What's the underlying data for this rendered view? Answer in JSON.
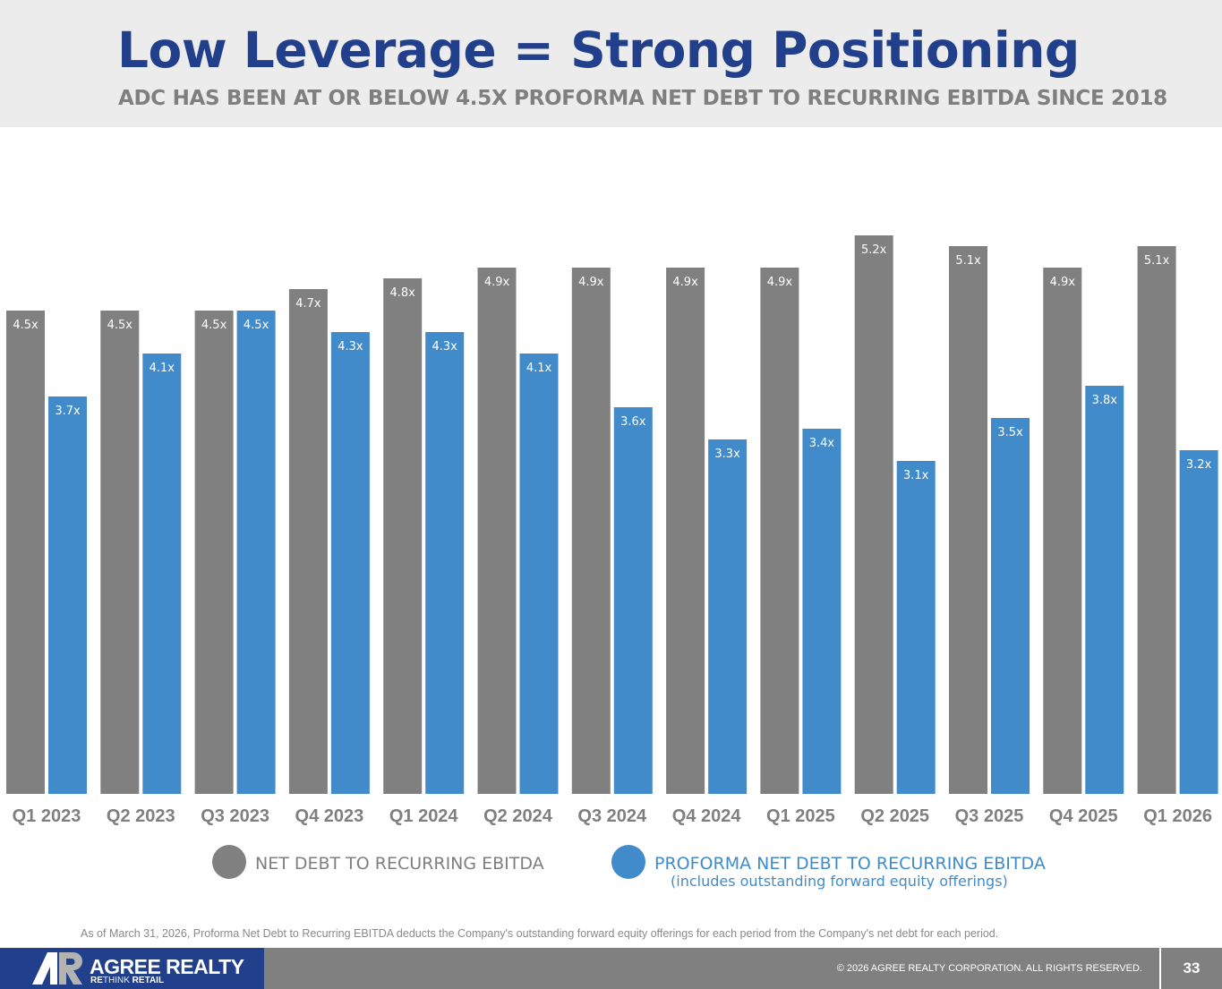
{
  "header": {
    "title": "Low Leverage = Strong Positioning",
    "subtitle": "ADC HAS BEEN AT OR BELOW 4.5X PROFORMA NET DEBT TO RECURRING EBITDA SINCE 2018"
  },
  "colors": {
    "net_debt": "#808080",
    "proforma": "#428bca",
    "title": "#213f8a",
    "subtitle": "#7f7f7f"
  },
  "chart_data": {
    "type": "bar",
    "title": "Low Leverage = Strong Positioning",
    "xlabel": "",
    "ylabel": "",
    "ylim": [
      0,
      5.2
    ],
    "grid": false,
    "legend_position": "bottom",
    "label_suffix": "x",
    "categories": [
      "Q1 2023",
      "Q2 2023",
      "Q3 2023",
      "Q4 2023",
      "Q1 2024",
      "Q2 2024",
      "Q3 2024",
      "Q4 2024",
      "Q1 2025",
      "Q2 2025",
      "Q3 2025",
      "Q4 2025",
      "Q1 2026"
    ],
    "series": [
      {
        "name": "NET DEBT TO RECURRING EBITDA",
        "color": "#808080",
        "values": [
          4.5,
          4.5,
          4.5,
          4.7,
          4.8,
          4.9,
          4.9,
          4.9,
          4.9,
          5.2,
          5.1,
          4.9,
          5.1
        ]
      },
      {
        "name": "PROFORMA NET DEBT TO RECURRING EBITDA",
        "note": "(includes outstanding forward equity offerings)",
        "color": "#428bca",
        "values": [
          3.7,
          4.1,
          4.5,
          4.3,
          4.3,
          4.1,
          3.6,
          3.3,
          3.4,
          3.1,
          3.5,
          3.8,
          3.2
        ]
      }
    ]
  },
  "legend": {
    "items": [
      {
        "label": "NET DEBT TO RECURRING EBITDA",
        "sub": ""
      },
      {
        "label": "PROFORMA NET DEBT TO RECURRING EBITDA",
        "sub": "(includes outstanding forward equity offerings)"
      }
    ]
  },
  "footnote": "As of March 31, 2026, Proforma Net Debt to Recurring EBITDA deducts the Company's outstanding forward equity offerings for each period from the Company's net debt for each period.",
  "footer": {
    "brand_name": "AGREE REALTY",
    "tagline_re": "RE",
    "tagline_think": "THINK",
    "tagline_retail": " RETAIL",
    "copyright": "© 2026 AGREE REALTY CORPORATION. ALL RIGHTS RESERVED.",
    "page_number": "33"
  }
}
